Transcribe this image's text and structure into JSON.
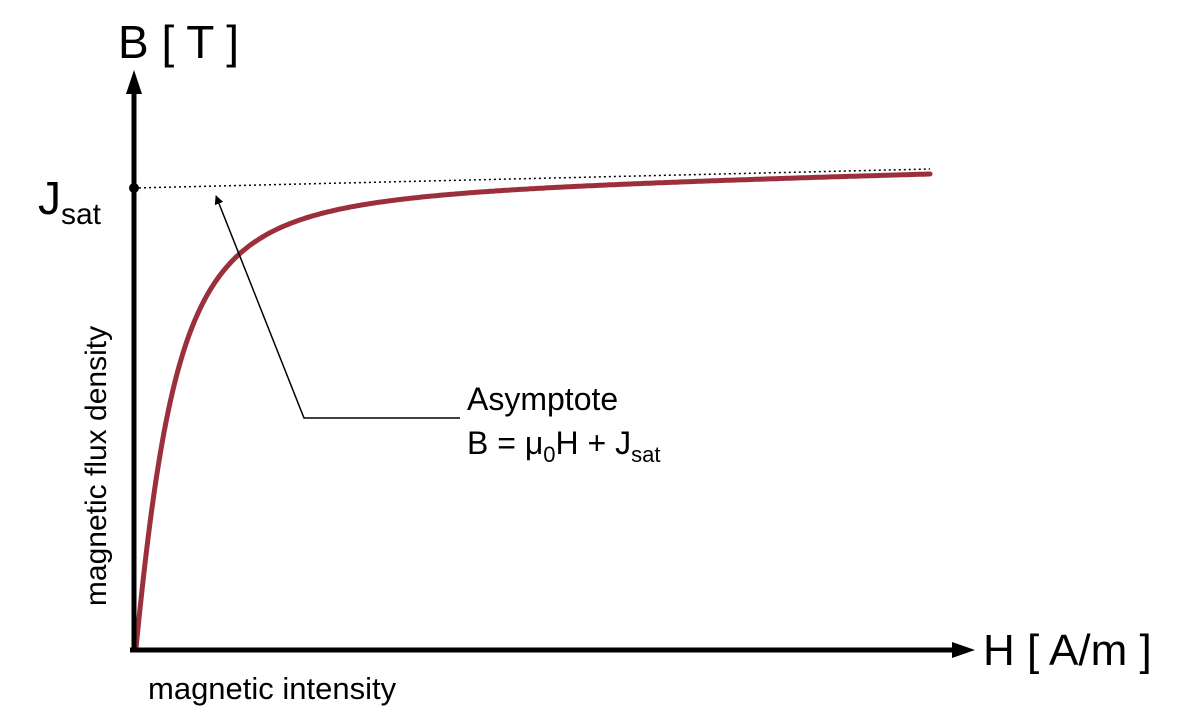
{
  "colors": {
    "curve": "#9b2f3b",
    "axis": "#000000",
    "asymptote": "#000000",
    "background": "#ffffff"
  },
  "y_axis": {
    "symbol": "B [ T ]",
    "quantity": "magnetic flux density",
    "marker": {
      "main": "J",
      "sub": "sat"
    }
  },
  "x_axis": {
    "symbol": "H [ A/m ]",
    "quantity": "magnetic intensity"
  },
  "annotation": {
    "title": "Asymptote",
    "formula_b": "B = μ",
    "formula_mu_sub": "0",
    "formula_h": "H + J",
    "formula_j_sub": "sat"
  },
  "curve_shape": "saturation",
  "asymptote_style": "dotted"
}
